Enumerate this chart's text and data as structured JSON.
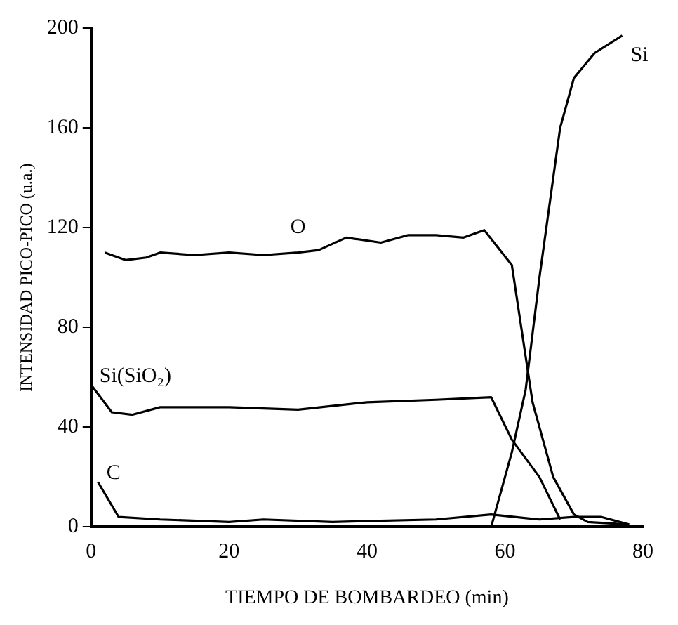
{
  "chart_data": {
    "type": "line",
    "xlabel": "TIEMPO DE BOMBARDEO (min)",
    "ylabel": "INTENSIDAD PICO-PICO (u.a.)",
    "xlim": [
      0,
      80
    ],
    "xticks": [
      0,
      20,
      40,
      60,
      80
    ],
    "ylim": [
      0,
      200
    ],
    "yticks": [
      0,
      40,
      80,
      120,
      160,
      200
    ],
    "grid": false,
    "legend": false,
    "marker": "none",
    "line_style": "solid",
    "series": [
      {
        "name": "O",
        "color": "#000000",
        "x": [
          2,
          5,
          8,
          10,
          15,
          20,
          25,
          30,
          33,
          37,
          42,
          46,
          50,
          54,
          57,
          61,
          64,
          67,
          70,
          72,
          78
        ],
        "values": [
          110,
          107,
          108,
          110,
          109,
          110,
          109,
          110,
          111,
          116,
          114,
          117,
          117,
          116,
          119,
          105,
          50,
          20,
          5,
          2,
          1
        ]
      },
      {
        "name": "Si(SiO₂)",
        "color": "#000000",
        "x": [
          0,
          3,
          6,
          10,
          20,
          30,
          40,
          50,
          58,
          61,
          65,
          68
        ],
        "values": [
          57,
          46,
          45,
          48,
          48,
          47,
          50,
          51,
          52,
          35,
          20,
          3
        ]
      },
      {
        "name": "C",
        "color": "#000000",
        "x": [
          1,
          4,
          10,
          20,
          25,
          35,
          50,
          58,
          65,
          70,
          74,
          78
        ],
        "values": [
          18,
          4,
          3,
          2,
          3,
          2,
          3,
          5,
          3,
          4,
          4,
          1
        ]
      },
      {
        "name": "Si",
        "color": "#000000",
        "x": [
          58,
          61,
          63,
          65,
          68,
          70,
          73,
          77
        ],
        "values": [
          0,
          30,
          55,
          100,
          160,
          180,
          190,
          197
        ]
      }
    ]
  }
}
